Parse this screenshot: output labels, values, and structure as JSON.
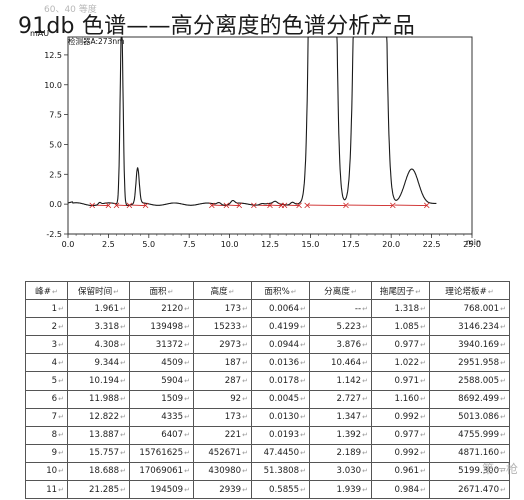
{
  "watermark_top": "60、40 等度",
  "headline": "91db 色谱——高分离度的色谱分析产品",
  "chart_data": {
    "type": "line",
    "title": "",
    "trace_label": "检测器A:273nm",
    "xlabel": "",
    "ylabel": "",
    "x_unit": "min",
    "y_unit": "mAU",
    "xlim": [
      0,
      25
    ],
    "ylim": [
      -2.5,
      14
    ],
    "x_ticks": [
      "0.0",
      "2.5",
      "5.0",
      "7.5",
      "10.0",
      "12.5",
      "15.0",
      "17.5",
      "20.0",
      "22.5",
      "25.0"
    ],
    "y_ticks": [
      "12.5",
      "10.0",
      "7.5",
      "5.0",
      "2.5",
      "0.0",
      "-2.5"
    ],
    "grid": false,
    "peaks": [
      {
        "rt": 1.961,
        "height": 0.17
      },
      {
        "rt": 3.318,
        "height": 15.2
      },
      {
        "rt": 4.308,
        "height": 2.97
      },
      {
        "rt": 9.344,
        "height": 0.19
      },
      {
        "rt": 10.194,
        "height": 0.29
      },
      {
        "rt": 11.988,
        "height": 0.09
      },
      {
        "rt": 12.822,
        "height": 0.17
      },
      {
        "rt": 13.887,
        "height": 0.22
      },
      {
        "rt": 15.757,
        "height": 452.7
      },
      {
        "rt": 18.688,
        "height": 430.98
      },
      {
        "rt": 21.285,
        "height": 2.94
      }
    ]
  },
  "table": {
    "headers": [
      "峰#",
      "保留时间",
      "面积",
      "高度",
      "面积%",
      "分离度",
      "拖尾因子",
      "理论塔板#"
    ],
    "rows": [
      [
        "1",
        "1.961",
        "2120",
        "173",
        "0.0064",
        "--",
        "1.318",
        "768.001"
      ],
      [
        "2",
        "3.318",
        "139498",
        "15233",
        "0.4199",
        "5.223",
        "1.085",
        "3146.234"
      ],
      [
        "3",
        "4.308",
        "31372",
        "2973",
        "0.0944",
        "3.876",
        "0.977",
        "3940.169"
      ],
      [
        "4",
        "9.344",
        "4509",
        "187",
        "0.0136",
        "10.464",
        "1.022",
        "2951.958"
      ],
      [
        "5",
        "10.194",
        "5904",
        "287",
        "0.0178",
        "1.142",
        "0.971",
        "2588.005"
      ],
      [
        "6",
        "11.988",
        "1509",
        "92",
        "0.0045",
        "2.727",
        "1.160",
        "8692.499"
      ],
      [
        "7",
        "12.822",
        "4335",
        "173",
        "0.0130",
        "1.347",
        "0.992",
        "5013.086"
      ],
      [
        "8",
        "13.887",
        "6407",
        "221",
        "0.0193",
        "1.392",
        "0.977",
        "4755.999"
      ],
      [
        "9",
        "15.757",
        "15761625",
        "452671",
        "47.4450",
        "2.189",
        "0.992",
        "4871.160"
      ],
      [
        "10",
        "18.688",
        "17069061",
        "430980",
        "51.3808",
        "3.030",
        "0.961",
        "5199.300"
      ],
      [
        "11",
        "21.285",
        "194509",
        "2939",
        "0.5855",
        "1.939",
        "0.984",
        "2671.470"
      ]
    ]
  },
  "watermark_bottom": "第一枪",
  "colors": {
    "trace": "#1a1a1a",
    "baseline": "#cc2020",
    "axis": "#333333",
    "frame_bg": "#f4f4f4"
  }
}
